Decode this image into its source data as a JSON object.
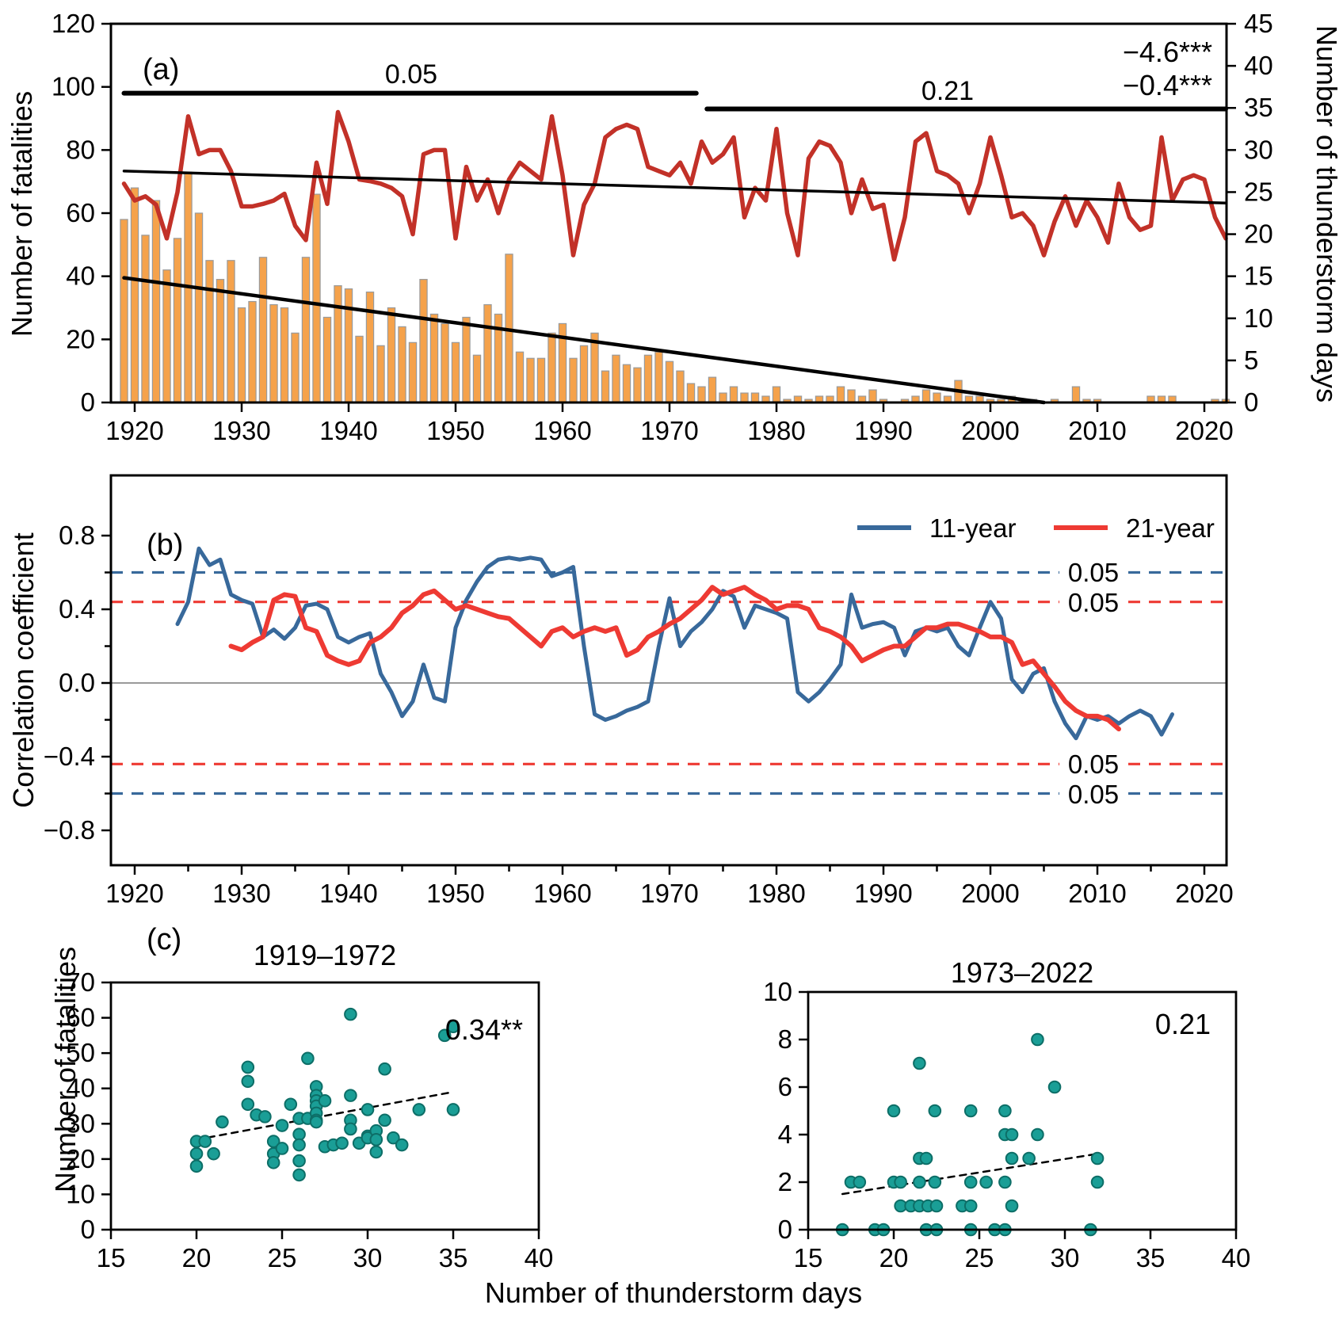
{
  "colors": {
    "bar_fill": "#F5A24B",
    "bar_edge": "#9A9A9A",
    "line_a_red": "#C23128",
    "trend_black": "#000000",
    "blue_11yr": "#38699B",
    "red_21yr": "#EE3A33",
    "zero_line_gray": "#8C8C8C",
    "teal_point_fill": "#1A9E96",
    "teal_point_edge": "#0D6E67",
    "orange_annot": "#F6A145"
  },
  "panel_a": {
    "label": "(a)",
    "ylabel_left": "Number of fatalities",
    "ylabel_right": "Number of thunderstorm days",
    "sig_left_label": "0.05",
    "sig_right_label": "0.21",
    "slope_bars_annotation": "−4.6***",
    "slope_line_annotation": "−0.4***"
  },
  "panel_b": {
    "label": "(b)",
    "ylabel": "Correlation coefficient",
    "legend": [
      {
        "label": "11-year",
        "color": "#38699B"
      },
      {
        "label": "21-year",
        "color": "#EE3A33"
      }
    ],
    "threshold_label": "0.05"
  },
  "panel_c": {
    "label": "(c)",
    "xlabel": "Number of thunderstorm days",
    "ylabel": "Number of fatalities",
    "left_title": "1919–1972",
    "right_title": "1973–2022",
    "left_annotation": "0.34**",
    "right_annotation": "0.21"
  },
  "chart_data": [
    {
      "id": "panel_a",
      "type": "bar",
      "title": "",
      "xlabel": "",
      "ylabel_left": "Number of fatalities",
      "ylabel_right": "Number of thunderstorm days",
      "x_start_year": 1919,
      "x_end_year": 2022,
      "xlim": [
        1917.8,
        2022.5
      ],
      "ylim_left": [
        0,
        120
      ],
      "ylim_right": [
        0,
        45
      ],
      "x_ticks": [
        1920,
        1930,
        1940,
        1950,
        1960,
        1970,
        1980,
        1990,
        2000,
        2010,
        2020
      ],
      "y_ticks_left": [
        0,
        20,
        40,
        60,
        80,
        100,
        120
      ],
      "y_ticks_right": [
        0,
        5,
        10,
        15,
        20,
        25,
        30,
        35,
        40,
        45
      ],
      "fatalities_bars": [
        58,
        68,
        53,
        64,
        42,
        52,
        73,
        60,
        45,
        39,
        45,
        30,
        32,
        46,
        31,
        30,
        22,
        46,
        66,
        27,
        37,
        36,
        21,
        35,
        18,
        30,
        24,
        19,
        39,
        28,
        25,
        19,
        27,
        15,
        31,
        28,
        47,
        16,
        14,
        14,
        22,
        25,
        14,
        18,
        22,
        10,
        15,
        12,
        11,
        15,
        16,
        13,
        10,
        6,
        5,
        8,
        3,
        5,
        3,
        3,
        2,
        5,
        1,
        2,
        1,
        2,
        2,
        5,
        4,
        2,
        4,
        1,
        0,
        1,
        2,
        4,
        3,
        2,
        7,
        2,
        2,
        1,
        1,
        2,
        1,
        1,
        0,
        1,
        0,
        5,
        1,
        1,
        0,
        0,
        0,
        0,
        2,
        2,
        2,
        0,
        0,
        0,
        1,
        1
      ],
      "thunderstorm_days_line": [
        26,
        24,
        24.5,
        23.5,
        19.5,
        25,
        34,
        29.5,
        30,
        30,
        27.5,
        23.3,
        23.3,
        23.6,
        24,
        24.8,
        21,
        19.3,
        28.5,
        23.6,
        34.5,
        31,
        26.5,
        26.3,
        26,
        25.5,
        24.5,
        20,
        29.5,
        30,
        30,
        19.5,
        28,
        24,
        26.5,
        22.5,
        26.5,
        28.5,
        27.5,
        26.5,
        34,
        27,
        17.5,
        23.5,
        26,
        31.5,
        32.5,
        33,
        32.5,
        28,
        27.5,
        27,
        28.5,
        26,
        31,
        28.5,
        29.5,
        31.5,
        22,
        25.5,
        24,
        32.5,
        22.5,
        17.5,
        29,
        31,
        30.5,
        28.5,
        22.5,
        26.5,
        23,
        23.5,
        17,
        22,
        31,
        32,
        27.5,
        27,
        26,
        22.5,
        26,
        31.5,
        27,
        22,
        22.5,
        21,
        17.5,
        21.5,
        24.5,
        21,
        24,
        22,
        19,
        26,
        22,
        20.5,
        21,
        31.5,
        24,
        26.5,
        27,
        26.5,
        22,
        19.5
      ],
      "bars_trend_fatalities": [
        [
          1919,
          39.5
        ],
        [
          2005,
          0
        ]
      ],
      "line_trend_thunderstorm_days": [
        [
          1919,
          27.5
        ],
        [
          2022,
          23.7
        ]
      ],
      "sig_line_1919_1972": {
        "y_fatalities_scale": 98,
        "x_span": [
          1919,
          1972.5
        ],
        "label": "0.05"
      },
      "sig_line_1973_2022": {
        "y_fatalities_scale": 93,
        "x_span": [
          1973.5,
          2022
        ],
        "label": "0.21"
      },
      "trend_slope_bars_per_decade": "−4.6***",
      "trend_slope_line_per_decade": "−0.4***"
    },
    {
      "id": "panel_b",
      "type": "line",
      "ylabel": "Correlation coefficient",
      "xlim": [
        1917.8,
        2031
      ],
      "ylim": [
        -1.0,
        1.1
      ],
      "x_ticks": [
        1920,
        1930,
        1940,
        1950,
        1960,
        1970,
        1980,
        1990,
        2000,
        2010,
        2020
      ],
      "y_ticks": [
        0.8,
        0.4,
        0.0,
        -0.4,
        -0.8
      ],
      "y_tick_labels": [
        "0.8",
        "0.4",
        "0.0",
        "−0.4",
        "−0.8"
      ],
      "thresholds": [
        {
          "value": 0.6,
          "color": "#38699B",
          "label": "0.05"
        },
        {
          "value": 0.44,
          "color": "#EE3A33",
          "label": "0.05"
        },
        {
          "value": -0.44,
          "color": "#EE3A33",
          "label": "0.05"
        },
        {
          "value": -0.6,
          "color": "#38699B",
          "label": "0.05"
        }
      ],
      "series": [
        {
          "name": "11-year",
          "color": "#38699B",
          "start_year": 1924,
          "values": [
            0.32,
            0.44,
            0.73,
            0.64,
            0.67,
            0.48,
            0.45,
            0.43,
            0.25,
            0.29,
            0.24,
            0.3,
            0.42,
            0.43,
            0.4,
            0.25,
            0.22,
            0.25,
            0.27,
            0.05,
            -0.05,
            -0.18,
            -0.1,
            0.1,
            -0.08,
            -0.1,
            0.3,
            0.45,
            0.55,
            0.63,
            0.67,
            0.68,
            0.67,
            0.68,
            0.67,
            0.58,
            0.6,
            0.63,
            0.2,
            -0.17,
            -0.2,
            -0.18,
            -0.15,
            -0.13,
            -0.1,
            0.2,
            0.46,
            0.2,
            0.28,
            0.33,
            0.4,
            0.5,
            0.47,
            0.3,
            0.42,
            0.4,
            0.38,
            0.35,
            -0.05,
            -0.1,
            -0.05,
            0.02,
            0.1,
            0.48,
            0.3,
            0.32,
            0.33,
            0.3,
            0.15,
            0.28,
            0.3,
            0.28,
            0.3,
            0.2,
            0.15,
            0.3,
            0.44,
            0.35,
            0.02,
            -0.05,
            0.05,
            0.08,
            -0.1,
            -0.22,
            -0.3,
            -0.18,
            -0.2,
            -0.18,
            -0.22,
            -0.18,
            -0.15,
            -0.18,
            -0.28,
            -0.17
          ]
        },
        {
          "name": "21-year",
          "color": "#EE3A33",
          "start_year": 1929,
          "values": [
            0.2,
            0.18,
            0.22,
            0.25,
            0.45,
            0.48,
            0.47,
            0.3,
            0.28,
            0.15,
            0.12,
            0.1,
            0.12,
            0.22,
            0.25,
            0.3,
            0.38,
            0.42,
            0.48,
            0.5,
            0.45,
            0.4,
            0.42,
            0.4,
            0.38,
            0.36,
            0.35,
            0.3,
            0.25,
            0.2,
            0.28,
            0.3,
            0.25,
            0.28,
            0.3,
            0.28,
            0.3,
            0.15,
            0.18,
            0.25,
            0.28,
            0.32,
            0.35,
            0.4,
            0.45,
            0.52,
            0.48,
            0.5,
            0.52,
            0.48,
            0.45,
            0.4,
            0.42,
            0.42,
            0.4,
            0.3,
            0.28,
            0.25,
            0.2,
            0.12,
            0.15,
            0.18,
            0.2,
            0.2,
            0.25,
            0.3,
            0.3,
            0.32,
            0.32,
            0.3,
            0.28,
            0.25,
            0.25,
            0.22,
            0.1,
            0.12,
            0.05,
            -0.02,
            -0.1,
            -0.15,
            -0.18,
            -0.18,
            -0.2,
            -0.25
          ]
        }
      ]
    },
    {
      "id": "panel_c_left",
      "type": "scatter",
      "title": "1919–1972",
      "annotation": "0.34**",
      "xlabel": "Number of thunderstorm days",
      "ylabel": "Number of fatalities",
      "xlim": [
        15,
        40
      ],
      "ylim": [
        0,
        70
      ],
      "x_ticks": [
        15,
        20,
        25,
        30,
        35,
        40
      ],
      "y_ticks": [
        0,
        10,
        20,
        30,
        40,
        50,
        60,
        70
      ],
      "points": [
        [
          20,
          25
        ],
        [
          20.5,
          25
        ],
        [
          20,
          21.5
        ],
        [
          20,
          18
        ],
        [
          21,
          21.5
        ],
        [
          21.5,
          30.5
        ],
        [
          23,
          46
        ],
        [
          23,
          42
        ],
        [
          23,
          35.5
        ],
        [
          23.5,
          32.5
        ],
        [
          24,
          32
        ],
        [
          24.5,
          25
        ],
        [
          24.5,
          21.5
        ],
        [
          24.5,
          19
        ],
        [
          25,
          29.5
        ],
        [
          25,
          23
        ],
        [
          25.5,
          35.5
        ],
        [
          26,
          31.5
        ],
        [
          26,
          27
        ],
        [
          26,
          24
        ],
        [
          26,
          19.5
        ],
        [
          26,
          15.5
        ],
        [
          26.5,
          48.5
        ],
        [
          26.5,
          31.5
        ],
        [
          27,
          40.5
        ],
        [
          27,
          38
        ],
        [
          27,
          36.5
        ],
        [
          27,
          35
        ],
        [
          27,
          33
        ],
        [
          27,
          31
        ],
        [
          27,
          30.5
        ],
        [
          27.5,
          36.5
        ],
        [
          27.5,
          23.5
        ],
        [
          28,
          24
        ],
        [
          28.5,
          24.5
        ],
        [
          29,
          61
        ],
        [
          29,
          38
        ],
        [
          29,
          31
        ],
        [
          29,
          28.5
        ],
        [
          29.5,
          24.5
        ],
        [
          30,
          34
        ],
        [
          30,
          26.5
        ],
        [
          30,
          26
        ],
        [
          30.5,
          28
        ],
        [
          30.5,
          25.5
        ],
        [
          30.5,
          22
        ],
        [
          31,
          45.5
        ],
        [
          31,
          31
        ],
        [
          31.5,
          26
        ],
        [
          32,
          24
        ],
        [
          33,
          34
        ],
        [
          34.5,
          55
        ],
        [
          35,
          57.5
        ],
        [
          35,
          34
        ]
      ],
      "trend": [
        [
          20,
          25.5
        ],
        [
          35,
          39
        ]
      ]
    },
    {
      "id": "panel_c_right",
      "type": "scatter",
      "title": "1973–2022",
      "annotation": "0.21",
      "xlabel": "Number of thunderstorm days",
      "ylabel": "Number of fatalities",
      "xlim": [
        15,
        40
      ],
      "ylim": [
        0,
        10
      ],
      "x_ticks": [
        15,
        20,
        25,
        30,
        35,
        40
      ],
      "y_ticks": [
        0,
        2,
        4,
        6,
        8,
        10
      ],
      "points": [
        [
          17,
          0
        ],
        [
          18.9,
          0
        ],
        [
          19.4,
          0
        ],
        [
          21.9,
          0
        ],
        [
          22.5,
          0
        ],
        [
          24.5,
          0
        ],
        [
          25.9,
          0
        ],
        [
          26.5,
          0
        ],
        [
          31.5,
          0
        ],
        [
          20.4,
          1
        ],
        [
          21,
          1
        ],
        [
          21.5,
          1
        ],
        [
          22,
          1
        ],
        [
          22.5,
          1
        ],
        [
          24,
          1
        ],
        [
          24.5,
          1
        ],
        [
          26.9,
          1
        ],
        [
          17.5,
          2
        ],
        [
          18,
          2
        ],
        [
          20,
          2
        ],
        [
          20.4,
          2
        ],
        [
          21.5,
          2
        ],
        [
          22.4,
          2
        ],
        [
          24.5,
          2
        ],
        [
          25.4,
          2
        ],
        [
          26.5,
          2
        ],
        [
          31.9,
          2
        ],
        [
          21.5,
          3
        ],
        [
          21.9,
          3
        ],
        [
          26.9,
          3
        ],
        [
          27.9,
          3
        ],
        [
          31.9,
          3
        ],
        [
          26.5,
          4
        ],
        [
          26.9,
          4
        ],
        [
          28.4,
          4
        ],
        [
          20,
          5
        ],
        [
          22.4,
          5
        ],
        [
          24.5,
          5
        ],
        [
          26.5,
          5
        ],
        [
          29.4,
          6
        ],
        [
          21.5,
          7
        ],
        [
          28.4,
          8
        ]
      ],
      "trend": [
        [
          17,
          1.5
        ],
        [
          32,
          3.2
        ]
      ]
    }
  ]
}
